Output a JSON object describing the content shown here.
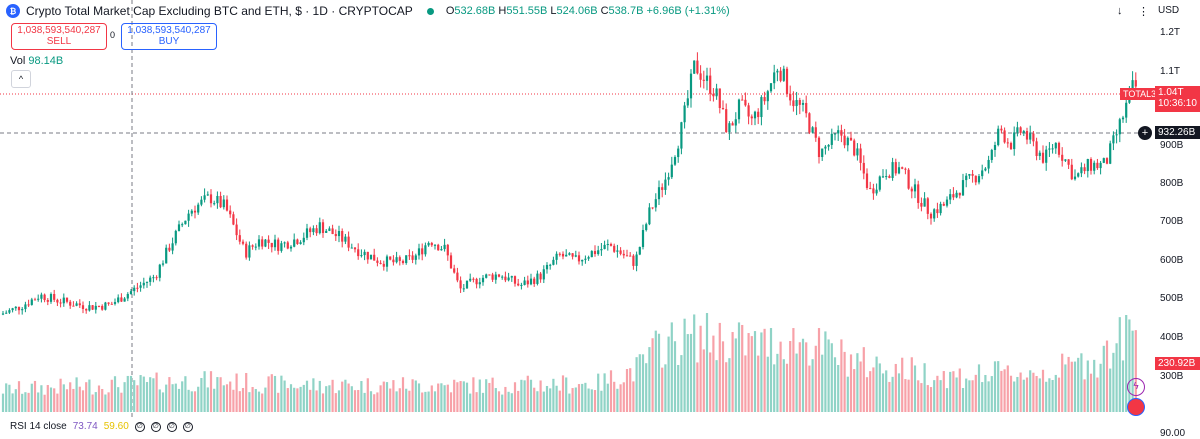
{
  "header": {
    "logo_text": "₿",
    "title": "Crypto Total Market Cap Excluding BTC and ETH, $ · 1D · CRYPTOCAP",
    "ohlc": [
      {
        "k": "O",
        "v": "532.68B"
      },
      {
        "k": "H",
        "v": "551.55B"
      },
      {
        "k": "L",
        "v": "524.06B"
      },
      {
        "k": "C",
        "v": "538.7B"
      }
    ],
    "change": "+6.96B (+1.31%)"
  },
  "trade": {
    "sell_price": "1,038,593,540,287",
    "sell_label": "SELL",
    "spread": "0",
    "buy_price": "1,038,593,540,287",
    "buy_label": "BUY"
  },
  "volume": {
    "label": "Vol",
    "value": "98.14B"
  },
  "toolbar": {
    "arrow": "↓",
    "menu": "⋮",
    "currency": "USD"
  },
  "price_axis": {
    "ticks": [
      "1.2T",
      "1.1T",
      "1T",
      "900B",
      "800B",
      "700B",
      "600B",
      "500B",
      "400B",
      "300B"
    ],
    "symbol_label": "TOTAL3",
    "last_price": "1.04T",
    "countdown": "10:36:10",
    "crosshair_price": "932.26B",
    "volume_last": "230.92B",
    "rsi_tick": "90.00"
  },
  "rsi": {
    "label": "RSI 14 close",
    "value1": "73.74",
    "value2": "59.60"
  },
  "colors": {
    "up": "#089981",
    "down": "#f23645",
    "up_vol": "#8fd3c6",
    "down_vol": "#f7a1a8"
  },
  "chart_data": {
    "type": "candlestick",
    "y_unit": "USD",
    "ylim": [
      430000000000,
      1220000000000
    ],
    "ticks": [
      300000000000,
      400000000000,
      500000000000,
      600000000000,
      700000000000,
      800000000000,
      900000000000,
      1000000000000,
      1100000000000,
      1200000000000
    ],
    "anchors": [
      [
        0,
        460
      ],
      [
        20,
        480
      ],
      [
        40,
        510
      ],
      [
        60,
        495
      ],
      [
        90,
        480
      ],
      [
        110,
        485
      ],
      [
        140,
        535
      ],
      [
        155,
        560
      ],
      [
        170,
        640
      ],
      [
        190,
        730
      ],
      [
        210,
        765
      ],
      [
        225,
        740
      ],
      [
        245,
        620
      ],
      [
        260,
        655
      ],
      [
        280,
        640
      ],
      [
        300,
        660
      ],
      [
        320,
        690
      ],
      [
        340,
        660
      ],
      [
        360,
        625
      ],
      [
        380,
        600
      ],
      [
        400,
        595
      ],
      [
        415,
        610
      ],
      [
        430,
        655
      ],
      [
        445,
        630
      ],
      [
        460,
        525
      ],
      [
        480,
        555
      ],
      [
        500,
        565
      ],
      [
        520,
        535
      ],
      [
        540,
        560
      ],
      [
        560,
        615
      ],
      [
        575,
        600
      ],
      [
        590,
        620
      ],
      [
        610,
        640
      ],
      [
        635,
        595
      ],
      [
        650,
        730
      ],
      [
        665,
        810
      ],
      [
        680,
        930
      ],
      [
        695,
        1120
      ],
      [
        705,
        1080
      ],
      [
        715,
        1050
      ],
      [
        728,
        940
      ],
      [
        740,
        1010
      ],
      [
        752,
        970
      ],
      [
        765,
        1030
      ],
      [
        778,
        1120
      ],
      [
        792,
        1030
      ],
      [
        805,
        990
      ],
      [
        820,
        880
      ],
      [
        840,
        935
      ],
      [
        855,
        890
      ],
      [
        870,
        780
      ],
      [
        885,
        835
      ],
      [
        900,
        840
      ],
      [
        915,
        780
      ],
      [
        930,
        725
      ],
      [
        945,
        745
      ],
      [
        960,
        790
      ],
      [
        975,
        820
      ],
      [
        990,
        860
      ],
      [
        1000,
        950
      ],
      [
        1010,
        905
      ],
      [
        1022,
        945
      ],
      [
        1032,
        905
      ],
      [
        1045,
        865
      ],
      [
        1055,
        910
      ],
      [
        1065,
        865
      ],
      [
        1075,
        815
      ],
      [
        1090,
        850
      ],
      [
        1105,
        850
      ],
      [
        1115,
        920
      ],
      [
        1125,
        1000
      ],
      [
        1133,
        1060
      ]
    ],
    "volume_anchors": [
      [
        0,
        0.25
      ],
      [
        100,
        0.3
      ],
      [
        200,
        0.35
      ],
      [
        300,
        0.3
      ],
      [
        400,
        0.3
      ],
      [
        500,
        0.3
      ],
      [
        600,
        0.32
      ],
      [
        640,
        0.5
      ],
      [
        660,
        0.75
      ],
      [
        700,
        0.85
      ],
      [
        760,
        0.75
      ],
      [
        800,
        0.8
      ],
      [
        860,
        0.55
      ],
      [
        950,
        0.4
      ],
      [
        1050,
        0.45
      ],
      [
        1100,
        0.6
      ],
      [
        1130,
        0.9
      ]
    ]
  }
}
